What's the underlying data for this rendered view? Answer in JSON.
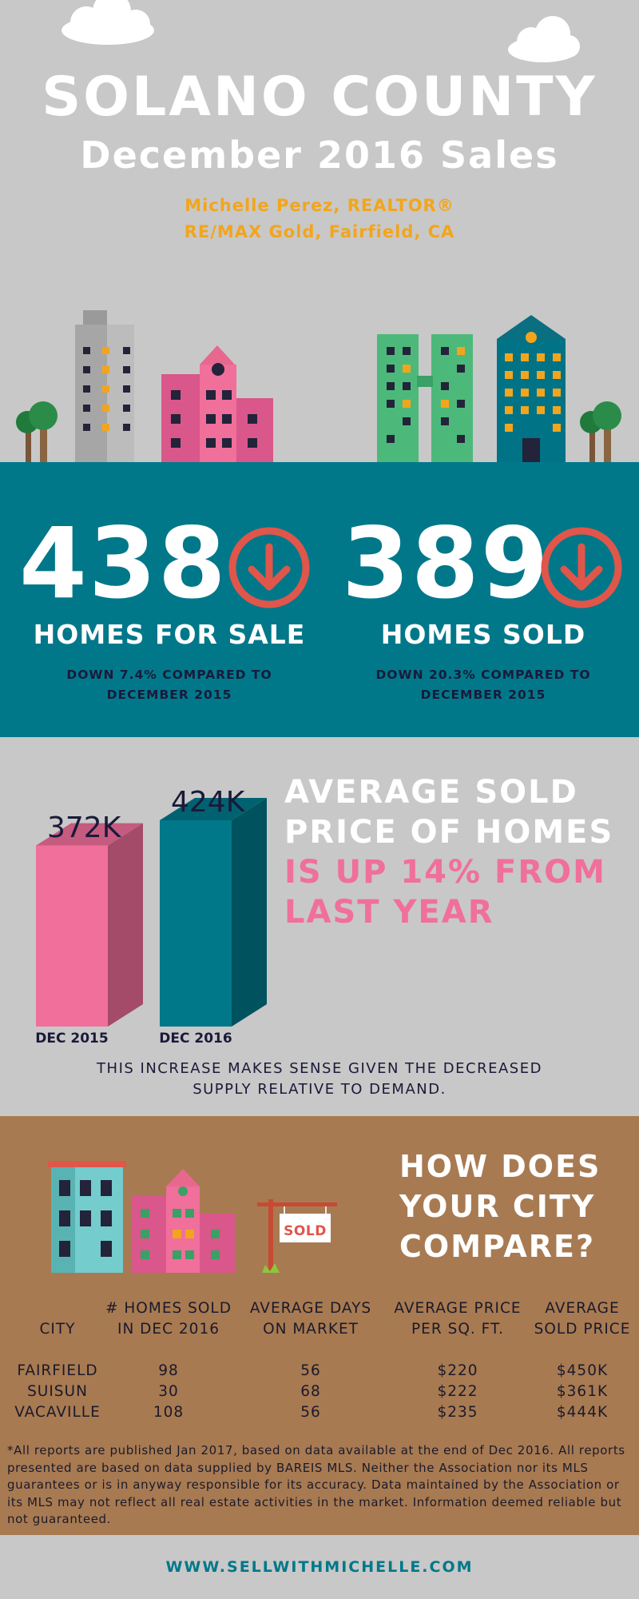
{
  "header": {
    "title": "SOLANO COUNTY",
    "subtitle": "December 2016 Sales",
    "agent_name": "Michelle Perez, REALTOR®",
    "agent_office": "RE/MAX Gold, Fairfield, CA"
  },
  "stats": {
    "for_sale": {
      "value": "438",
      "label": "HOMES FOR SALE",
      "sub1": "DOWN 7.4% COMPARED TO",
      "sub2": "DECEMBER 2015"
    },
    "sold": {
      "value": "389",
      "label": "HOMES SOLD",
      "sub1": "DOWN 20.3% COMPARED TO",
      "sub2": "DECEMBER 2015"
    }
  },
  "price": {
    "headline1": "AVERAGE SOLD",
    "headline2": "PRICE OF HOMES",
    "headline3": "IS UP 14% FROM",
    "headline4": "LAST YEAR",
    "note1": "THIS INCREASE MAKES SENSE GIVEN THE DECREASED",
    "note2": "SUPPLY RELATIVE TO DEMAND."
  },
  "chart_data": {
    "type": "bar",
    "categories": [
      "DEC 2015",
      "DEC 2016"
    ],
    "values": [
      372,
      424
    ],
    "value_labels": [
      "372K",
      "424K"
    ],
    "colors": [
      "#f06f9b",
      "#00788a"
    ],
    "ylim": [
      0,
      424
    ]
  },
  "cities": {
    "headline1": "HOW DOES",
    "headline2": "YOUR CITY",
    "headline3": "COMPARE?",
    "sign_text": "SOLD",
    "columns": [
      {
        "line1": "",
        "line2": "CITY"
      },
      {
        "line1": "# HOMES SOLD",
        "line2": "IN DEC 2016"
      },
      {
        "line1": "AVERAGE DAYS",
        "line2": "ON MARKET"
      },
      {
        "line1": "AVERAGE PRICE",
        "line2": "PER SQ. FT."
      },
      {
        "line1": "AVERAGE",
        "line2": "SOLD PRICE"
      }
    ],
    "rows": [
      [
        "FAIRFIELD",
        "98",
        "56",
        "$220",
        "$450K"
      ],
      [
        "SUISUN",
        "30",
        "68",
        "$222",
        "$361K"
      ],
      [
        "VACAVILLE",
        "108",
        "56",
        "$235",
        "$444K"
      ]
    ],
    "footnote": "*All reports are published Jan 2017, based on data available at the end of Dec 2016. All reports presented are based on data supplied by BAREIS MLS. Neither the Association nor its MLS guarantees or is in anyway responsible for its accuracy. Data maintained by the Association or its MLS may not reflect all real estate activities in the market. Information deemed reliable but not guaranteed."
  },
  "footer": {
    "website": "WWW.SELLWITHMICHELLE.COM"
  },
  "colors": {
    "teal": "#00788a",
    "pink": "#f06f9b",
    "orange": "#f2a51c",
    "brown": "#a87a52",
    "red": "#e0564a",
    "navy": "#1a1a3a"
  }
}
